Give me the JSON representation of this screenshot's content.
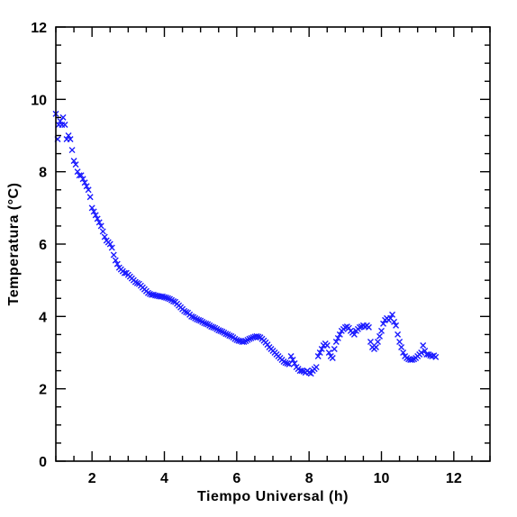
{
  "chart_data": {
    "type": "scatter",
    "xlabel": "Tiempo Universal (h)",
    "ylabel": "Temperatura (°C)",
    "xlim": [
      1,
      13
    ],
    "ylim": [
      0,
      12
    ],
    "x_ticks": [
      2,
      4,
      6,
      8,
      10,
      12
    ],
    "y_ticks": [
      0,
      2,
      4,
      6,
      8,
      10,
      12
    ],
    "x_minor_step": 0.5,
    "y_minor_step": 0.5,
    "grid": false,
    "marker": "x",
    "color": "#1a1aff",
    "points": [
      [
        1.0,
        9.6
      ],
      [
        1.05,
        8.9
      ],
      [
        1.08,
        9.3
      ],
      [
        1.12,
        9.4
      ],
      [
        1.17,
        9.3
      ],
      [
        1.2,
        9.5
      ],
      [
        1.25,
        9.3
      ],
      [
        1.3,
        8.9
      ],
      [
        1.35,
        9.0
      ],
      [
        1.4,
        8.9
      ],
      [
        1.45,
        8.6
      ],
      [
        1.5,
        8.3
      ],
      [
        1.55,
        8.2
      ],
      [
        1.6,
        8.0
      ],
      [
        1.65,
        7.9
      ],
      [
        1.7,
        7.9
      ],
      [
        1.75,
        7.8
      ],
      [
        1.8,
        7.7
      ],
      [
        1.85,
        7.6
      ],
      [
        1.9,
        7.5
      ],
      [
        1.95,
        7.3
      ],
      [
        2.0,
        7.0
      ],
      [
        2.05,
        6.9
      ],
      [
        2.1,
        6.8
      ],
      [
        2.15,
        6.7
      ],
      [
        2.2,
        6.6
      ],
      [
        2.25,
        6.5
      ],
      [
        2.3,
        6.35
      ],
      [
        2.35,
        6.2
      ],
      [
        2.4,
        6.1
      ],
      [
        2.45,
        6.05
      ],
      [
        2.5,
        6.0
      ],
      [
        2.55,
        5.9
      ],
      [
        2.6,
        5.7
      ],
      [
        2.65,
        5.55
      ],
      [
        2.7,
        5.45
      ],
      [
        2.75,
        5.35
      ],
      [
        2.8,
        5.3
      ],
      [
        2.85,
        5.25
      ],
      [
        2.9,
        5.2
      ],
      [
        2.95,
        5.2
      ],
      [
        3.0,
        5.15
      ],
      [
        3.05,
        5.1
      ],
      [
        3.1,
        5.05
      ],
      [
        3.15,
        5.0
      ],
      [
        3.2,
        4.95
      ],
      [
        3.25,
        4.92
      ],
      [
        3.3,
        4.9
      ],
      [
        3.35,
        4.85
      ],
      [
        3.4,
        4.8
      ],
      [
        3.45,
        4.75
      ],
      [
        3.5,
        4.7
      ],
      [
        3.55,
        4.65
      ],
      [
        3.6,
        4.62
      ],
      [
        3.65,
        4.6
      ],
      [
        3.7,
        4.6
      ],
      [
        3.75,
        4.58
      ],
      [
        3.8,
        4.57
      ],
      [
        3.85,
        4.56
      ],
      [
        3.9,
        4.55
      ],
      [
        3.95,
        4.55
      ],
      [
        4.0,
        4.53
      ],
      [
        4.05,
        4.52
      ],
      [
        4.1,
        4.5
      ],
      [
        4.15,
        4.48
      ],
      [
        4.2,
        4.45
      ],
      [
        4.25,
        4.42
      ],
      [
        4.3,
        4.4
      ],
      [
        4.35,
        4.35
      ],
      [
        4.4,
        4.3
      ],
      [
        4.45,
        4.25
      ],
      [
        4.5,
        4.2
      ],
      [
        4.55,
        4.15
      ],
      [
        4.6,
        4.12
      ],
      [
        4.65,
        4.1
      ],
      [
        4.7,
        4.05
      ],
      [
        4.75,
        4.0
      ],
      [
        4.8,
        3.98
      ],
      [
        4.85,
        3.95
      ],
      [
        4.9,
        3.92
      ],
      [
        4.95,
        3.9
      ],
      [
        5.0,
        3.88
      ],
      [
        5.05,
        3.85
      ],
      [
        5.1,
        3.82
      ],
      [
        5.15,
        3.8
      ],
      [
        5.2,
        3.78
      ],
      [
        5.25,
        3.75
      ],
      [
        5.3,
        3.72
      ],
      [
        5.35,
        3.7
      ],
      [
        5.4,
        3.68
      ],
      [
        5.45,
        3.65
      ],
      [
        5.5,
        3.62
      ],
      [
        5.55,
        3.6
      ],
      [
        5.6,
        3.58
      ],
      [
        5.65,
        3.55
      ],
      [
        5.7,
        3.52
      ],
      [
        5.75,
        3.5
      ],
      [
        5.8,
        3.47
      ],
      [
        5.85,
        3.45
      ],
      [
        5.9,
        3.42
      ],
      [
        5.95,
        3.38
      ],
      [
        6.0,
        3.35
      ],
      [
        6.05,
        3.33
      ],
      [
        6.1,
        3.32
      ],
      [
        6.15,
        3.3
      ],
      [
        6.2,
        3.3
      ],
      [
        6.25,
        3.32
      ],
      [
        6.3,
        3.35
      ],
      [
        6.35,
        3.38
      ],
      [
        6.4,
        3.4
      ],
      [
        6.45,
        3.42
      ],
      [
        6.5,
        3.44
      ],
      [
        6.55,
        3.45
      ],
      [
        6.6,
        3.44
      ],
      [
        6.65,
        3.42
      ],
      [
        6.7,
        3.38
      ],
      [
        6.75,
        3.33
      ],
      [
        6.8,
        3.28
      ],
      [
        6.85,
        3.22
      ],
      [
        6.9,
        3.15
      ],
      [
        6.95,
        3.1
      ],
      [
        7.0,
        3.05
      ],
      [
        7.05,
        3.0
      ],
      [
        7.1,
        2.95
      ],
      [
        7.15,
        2.9
      ],
      [
        7.2,
        2.85
      ],
      [
        7.25,
        2.8
      ],
      [
        7.3,
        2.75
      ],
      [
        7.35,
        2.72
      ],
      [
        7.4,
        2.7
      ],
      [
        7.45,
        2.68
      ],
      [
        7.5,
        2.9
      ],
      [
        7.55,
        2.8
      ],
      [
        7.6,
        2.7
      ],
      [
        7.65,
        2.6
      ],
      [
        7.7,
        2.55
      ],
      [
        7.75,
        2.5
      ],
      [
        7.8,
        2.5
      ],
      [
        7.85,
        2.48
      ],
      [
        7.9,
        2.45
      ],
      [
        7.95,
        2.5
      ],
      [
        8.0,
        2.45
      ],
      [
        8.05,
        2.42
      ],
      [
        8.1,
        2.5
      ],
      [
        8.15,
        2.55
      ],
      [
        8.2,
        2.6
      ],
      [
        8.25,
        2.9
      ],
      [
        8.3,
        3.0
      ],
      [
        8.35,
        3.1
      ],
      [
        8.4,
        3.2
      ],
      [
        8.45,
        3.25
      ],
      [
        8.5,
        3.2
      ],
      [
        8.55,
        3.0
      ],
      [
        8.6,
        2.9
      ],
      [
        8.65,
        2.85
      ],
      [
        8.7,
        3.1
      ],
      [
        8.75,
        3.3
      ],
      [
        8.8,
        3.4
      ],
      [
        8.85,
        3.5
      ],
      [
        8.9,
        3.6
      ],
      [
        8.95,
        3.65
      ],
      [
        9.0,
        3.7
      ],
      [
        9.05,
        3.72
      ],
      [
        9.1,
        3.68
      ],
      [
        9.15,
        3.6
      ],
      [
        9.2,
        3.55
      ],
      [
        9.25,
        3.5
      ],
      [
        9.3,
        3.6
      ],
      [
        9.35,
        3.65
      ],
      [
        9.4,
        3.7
      ],
      [
        9.45,
        3.72
      ],
      [
        9.5,
        3.75
      ],
      [
        9.55,
        3.72
      ],
      [
        9.6,
        3.75
      ],
      [
        9.65,
        3.7
      ],
      [
        9.7,
        3.3
      ],
      [
        9.75,
        3.15
      ],
      [
        9.8,
        3.1
      ],
      [
        9.85,
        3.15
      ],
      [
        9.9,
        3.3
      ],
      [
        9.95,
        3.45
      ],
      [
        10.0,
        3.6
      ],
      [
        10.05,
        3.8
      ],
      [
        10.1,
        3.9
      ],
      [
        10.15,
        3.95
      ],
      [
        10.2,
        3.9
      ],
      [
        10.25,
        3.95
      ],
      [
        10.3,
        4.05
      ],
      [
        10.35,
        3.85
      ],
      [
        10.4,
        3.75
      ],
      [
        10.45,
        3.5
      ],
      [
        10.5,
        3.3
      ],
      [
        10.55,
        3.15
      ],
      [
        10.6,
        3.0
      ],
      [
        10.65,
        2.9
      ],
      [
        10.7,
        2.85
      ],
      [
        10.75,
        2.82
      ],
      [
        10.8,
        2.8
      ],
      [
        10.85,
        2.8
      ],
      [
        10.9,
        2.82
      ],
      [
        10.95,
        2.85
      ],
      [
        11.0,
        2.9
      ],
      [
        11.05,
        2.95
      ],
      [
        11.1,
        3.0
      ],
      [
        11.15,
        3.2
      ],
      [
        11.2,
        3.05
      ],
      [
        11.25,
        2.95
      ],
      [
        11.3,
        2.95
      ],
      [
        11.35,
        2.92
      ],
      [
        11.4,
        2.9
      ],
      [
        11.45,
        2.92
      ],
      [
        11.5,
        2.88
      ]
    ]
  }
}
